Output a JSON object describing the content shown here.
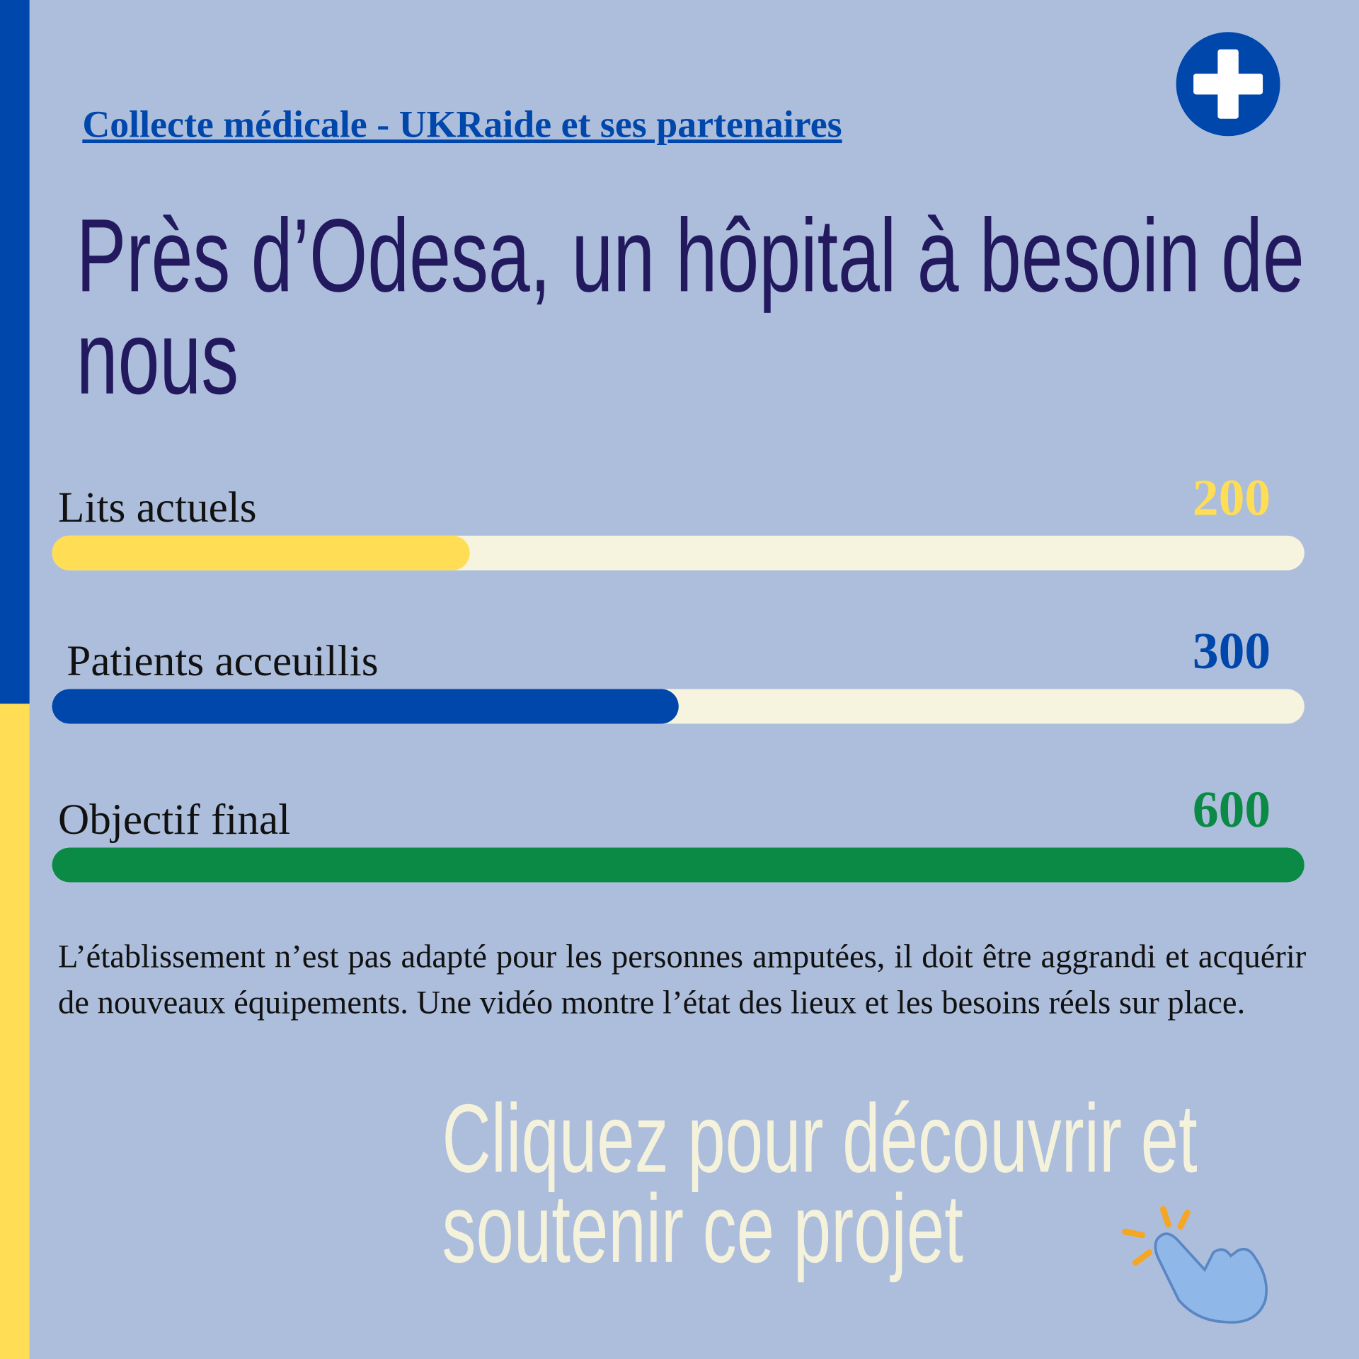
{
  "header": {
    "link": "Collecte médicale - UKRaide et ses partenaires"
  },
  "title": "Près d’Odesa, un hôpital à besoin de nous",
  "bars": [
    {
      "label": "Lits actuels",
      "value": 200,
      "color": "#ffdd55"
    },
    {
      "label": "Patients acceuillis",
      "value": 300,
      "color": "#0047ab"
    },
    {
      "label": "Objectif final",
      "value": 600,
      "color": "#0a8a45"
    }
  ],
  "body": "L’établissement n’est pas adapté pour les personnes amputées, il doit être aggrandi et acquérir de nouveaux équipements. Une vidéo montre l’état des lieux et les besoins réels sur place.",
  "cta": "Cliquez pour découvrir et soutenir ce projet"
}
